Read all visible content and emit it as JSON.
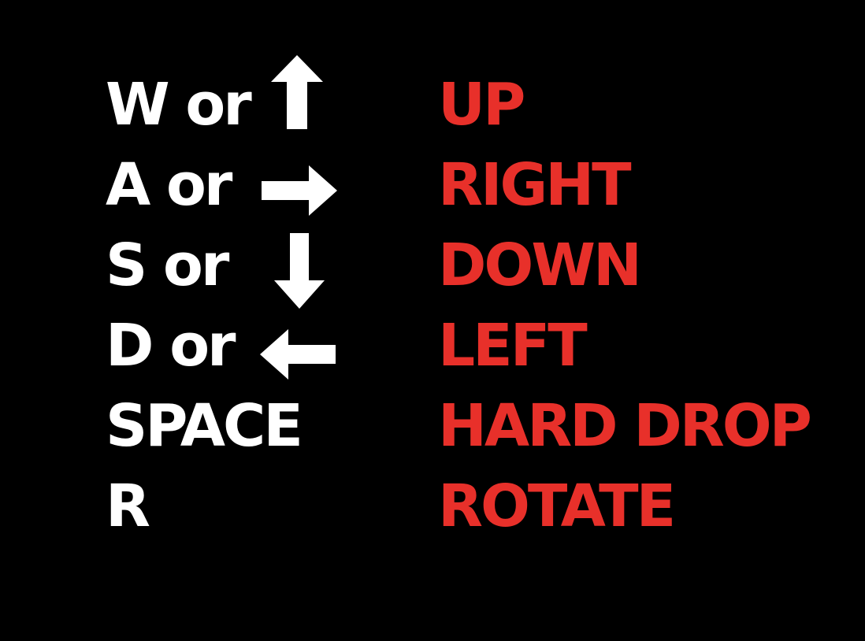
{
  "controls": [
    {
      "key": "W or",
      "icon": "arrow-up-icon",
      "action": "UP"
    },
    {
      "key": "A or",
      "icon": "arrow-right-icon",
      "action": "RIGHT"
    },
    {
      "key": "S or",
      "icon": "arrow-down-icon",
      "action": "DOWN"
    },
    {
      "key": "D or",
      "icon": "arrow-left-icon",
      "action": "LEFT"
    },
    {
      "key": "SPACE",
      "icon": "",
      "action": "HARD DROP"
    },
    {
      "key": "R",
      "icon": "",
      "action": "ROTATE"
    }
  ],
  "colors": {
    "background": "#000000",
    "key_text": "#ffffff",
    "action_text": "#e8302a"
  }
}
